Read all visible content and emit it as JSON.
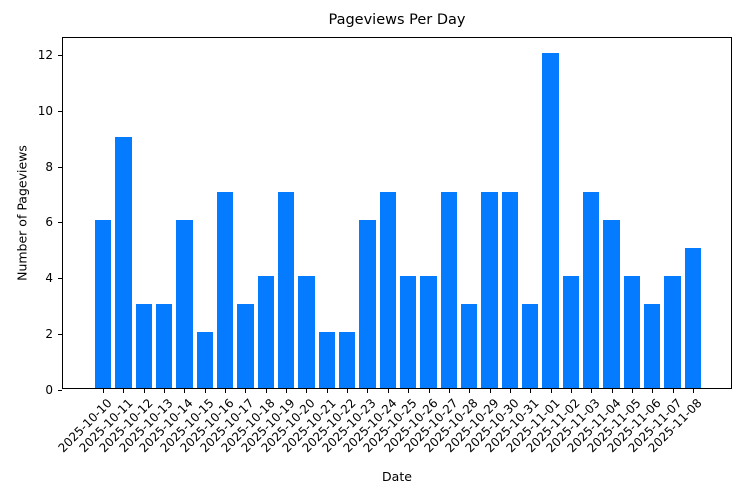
{
  "chart_data": {
    "type": "bar",
    "title": "Pageviews Per Day",
    "xlabel": "Date",
    "ylabel": "Number of Pageviews",
    "ylim": [
      0,
      12.6
    ],
    "yticks": [
      0,
      2,
      4,
      6,
      8,
      10,
      12
    ],
    "grid": false,
    "legend": null,
    "bar_color": "#057bff",
    "categories": [
      "2025-10-10",
      "2025-10-11",
      "2025-10-12",
      "2025-10-13",
      "2025-10-14",
      "2025-10-15",
      "2025-10-16",
      "2025-10-17",
      "2025-10-18",
      "2025-10-19",
      "2025-10-20",
      "2025-10-21",
      "2025-10-22",
      "2025-10-23",
      "2025-10-24",
      "2025-10-25",
      "2025-10-26",
      "2025-10-27",
      "2025-10-28",
      "2025-10-29",
      "2025-10-30",
      "2025-10-31",
      "2025-11-01",
      "2025-11-02",
      "2025-11-03",
      "2025-11-04",
      "2025-11-05",
      "2025-11-06",
      "2025-11-07",
      "2025-11-08"
    ],
    "values": [
      6,
      9,
      3,
      3,
      6,
      2,
      7,
      3,
      4,
      7,
      4,
      2,
      2,
      6,
      7,
      4,
      4,
      7,
      3,
      7,
      7,
      3,
      12,
      4,
      7,
      6,
      4,
      3,
      4,
      5
    ]
  }
}
